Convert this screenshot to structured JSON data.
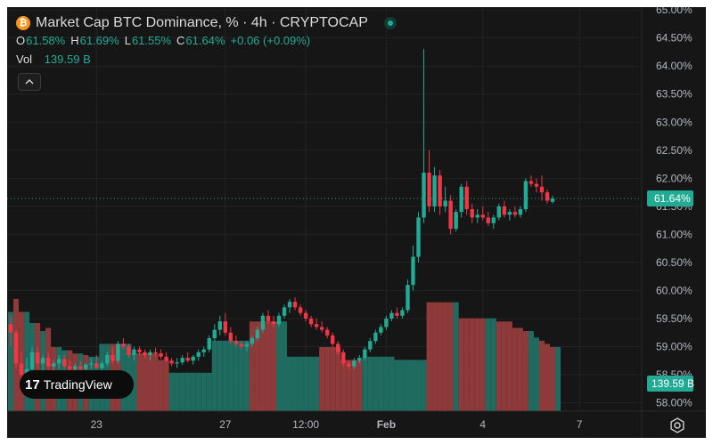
{
  "header": {
    "icon": "bitcoin-icon",
    "title": "Market Cap BTC Dominance, % · 4h · CRYPTOCAP",
    "ohlc": [
      {
        "key": "O",
        "value": "61.58%"
      },
      {
        "key": "H",
        "value": "61.69%"
      },
      {
        "key": "L",
        "value": "61.55%"
      },
      {
        "key": "C",
        "value": "61.64%"
      }
    ],
    "change": "+0.06 (+0.09%)",
    "vol_label": "Vol",
    "vol_value": "139.59 B"
  },
  "branding": {
    "mark": "17",
    "name": "TradingView"
  },
  "colors": {
    "up": "#22ab94",
    "down": "#f23645",
    "vol_up": "#1f6b60",
    "vol_down": "#8e3a3a",
    "bg": "#161616"
  },
  "chart_data": {
    "type": "candlestick",
    "y_axis": {
      "range": [
        57.85,
        65.05
      ],
      "ticks": [
        "65.00%",
        "64.50%",
        "64.00%",
        "63.50%",
        "63.00%",
        "62.50%",
        "62.00%",
        "61.50%",
        "61.00%",
        "60.50%",
        "60.00%",
        "59.50%",
        "59.00%",
        "58.50%",
        "58.00%"
      ],
      "tick_values": [
        65.0,
        64.5,
        64.0,
        63.5,
        63.0,
        62.5,
        62.0,
        61.5,
        61.0,
        60.5,
        60.0,
        59.5,
        59.0,
        58.5,
        58.0
      ]
    },
    "x_axis": {
      "labels": [
        {
          "label": "23",
          "index": 16
        },
        {
          "label": "27",
          "index": 40
        },
        {
          "label": "12:00",
          "index": 55
        },
        {
          "label": "Feb",
          "index": 70
        },
        {
          "label": "4",
          "index": 88
        },
        {
          "label": "7",
          "index": 106
        }
      ]
    },
    "price_label": "61.64%",
    "price_value": 61.64,
    "volume_label": "139.59 B",
    "candles": [
      [
        59.4,
        59.55,
        59.0,
        59.25
      ],
      [
        59.25,
        59.3,
        58.6,
        58.7
      ],
      [
        58.7,
        58.9,
        58.3,
        58.5
      ],
      [
        58.5,
        58.8,
        58.4,
        58.6
      ],
      [
        58.6,
        59.0,
        58.55,
        58.9
      ],
      [
        58.9,
        59.0,
        58.6,
        58.7
      ],
      [
        58.7,
        58.85,
        58.55,
        58.8
      ],
      [
        58.8,
        58.9,
        58.6,
        58.65
      ],
      [
        58.65,
        58.75,
        58.55,
        58.7
      ],
      [
        58.7,
        58.85,
        58.6,
        58.78
      ],
      [
        58.78,
        58.85,
        58.6,
        58.65
      ],
      [
        58.65,
        58.75,
        58.55,
        58.6
      ],
      [
        58.6,
        58.7,
        58.5,
        58.65
      ],
      [
        58.65,
        58.75,
        58.55,
        58.6
      ],
      [
        58.6,
        58.7,
        58.5,
        58.68
      ],
      [
        58.68,
        58.8,
        58.6,
        58.7
      ],
      [
        58.7,
        58.85,
        58.6,
        58.62
      ],
      [
        58.62,
        58.75,
        58.55,
        58.7
      ],
      [
        58.7,
        58.9,
        58.65,
        58.85
      ],
      [
        58.85,
        59.0,
        58.7,
        58.75
      ],
      [
        58.75,
        59.1,
        58.7,
        59.05
      ],
      [
        59.05,
        59.15,
        58.95,
        59.0
      ],
      [
        59.0,
        59.05,
        58.8,
        58.85
      ],
      [
        58.85,
        59.0,
        58.75,
        58.95
      ],
      [
        58.95,
        59.0,
        58.85,
        58.9
      ],
      [
        58.9,
        58.95,
        58.8,
        58.85
      ],
      [
        58.85,
        58.95,
        58.75,
        58.9
      ],
      [
        58.9,
        58.98,
        58.82,
        58.88
      ],
      [
        58.88,
        58.95,
        58.78,
        58.82
      ],
      [
        58.82,
        58.9,
        58.72,
        58.75
      ],
      [
        58.75,
        58.8,
        58.65,
        58.7
      ],
      [
        58.7,
        58.8,
        58.62,
        58.72
      ],
      [
        58.72,
        58.85,
        58.68,
        58.8
      ],
      [
        58.8,
        58.9,
        58.72,
        58.75
      ],
      [
        58.75,
        58.85,
        58.68,
        58.82
      ],
      [
        58.82,
        58.95,
        58.75,
        58.9
      ],
      [
        58.9,
        59.0,
        58.82,
        58.95
      ],
      [
        58.95,
        59.2,
        58.9,
        59.15
      ],
      [
        59.15,
        59.4,
        59.1,
        59.3
      ],
      [
        59.3,
        59.55,
        59.2,
        59.45
      ],
      [
        59.45,
        59.6,
        59.2,
        59.25
      ],
      [
        59.25,
        59.35,
        59.05,
        59.1
      ],
      [
        59.1,
        59.2,
        59.0,
        59.05
      ],
      [
        59.05,
        59.1,
        58.95,
        59.0
      ],
      [
        59.0,
        59.1,
        58.92,
        59.05
      ],
      [
        59.05,
        59.2,
        59.0,
        59.15
      ],
      [
        59.15,
        59.35,
        59.1,
        59.3
      ],
      [
        59.3,
        59.6,
        59.25,
        59.55
      ],
      [
        59.55,
        59.65,
        59.4,
        59.45
      ],
      [
        59.45,
        59.55,
        59.35,
        59.4
      ],
      [
        59.4,
        59.6,
        59.35,
        59.55
      ],
      [
        59.55,
        59.75,
        59.5,
        59.7
      ],
      [
        59.7,
        59.85,
        59.6,
        59.8
      ],
      [
        59.8,
        59.88,
        59.65,
        59.7
      ],
      [
        59.7,
        59.75,
        59.55,
        59.6
      ],
      [
        59.6,
        59.65,
        59.45,
        59.5
      ],
      [
        59.5,
        59.55,
        59.35,
        59.4
      ],
      [
        59.4,
        59.5,
        59.3,
        59.35
      ],
      [
        59.35,
        59.45,
        59.25,
        59.3
      ],
      [
        59.3,
        59.35,
        59.15,
        59.2
      ],
      [
        59.2,
        59.25,
        59.0,
        59.05
      ],
      [
        59.05,
        59.1,
        58.85,
        58.9
      ],
      [
        58.9,
        58.95,
        58.65,
        58.7
      ],
      [
        58.7,
        58.75,
        58.6,
        58.65
      ],
      [
        58.65,
        58.8,
        58.6,
        58.75
      ],
      [
        58.75,
        58.85,
        58.7,
        58.8
      ],
      [
        58.8,
        59.0,
        58.75,
        58.95
      ],
      [
        58.95,
        59.15,
        58.9,
        59.1
      ],
      [
        59.1,
        59.3,
        59.05,
        59.25
      ],
      [
        59.25,
        59.4,
        59.2,
        59.35
      ],
      [
        59.35,
        59.55,
        59.3,
        59.5
      ],
      [
        59.5,
        59.65,
        59.45,
        59.6
      ],
      [
        59.6,
        59.7,
        59.5,
        59.55
      ],
      [
        59.55,
        59.7,
        59.5,
        59.65
      ],
      [
        59.65,
        60.2,
        59.6,
        60.1
      ],
      [
        60.1,
        60.8,
        60.0,
        60.6
      ],
      [
        60.6,
        61.4,
        60.5,
        61.3
      ],
      [
        61.3,
        64.3,
        61.2,
        62.1
      ],
      [
        62.1,
        62.5,
        61.4,
        61.5
      ],
      [
        61.5,
        62.2,
        61.4,
        62.05
      ],
      [
        62.05,
        62.15,
        61.35,
        61.5
      ],
      [
        61.5,
        61.85,
        61.4,
        61.6
      ],
      [
        61.6,
        61.7,
        61.0,
        61.1
      ],
      [
        61.1,
        61.45,
        61.05,
        61.4
      ],
      [
        61.4,
        61.9,
        61.3,
        61.85
      ],
      [
        61.85,
        61.95,
        61.35,
        61.45
      ],
      [
        61.45,
        61.55,
        61.2,
        61.3
      ],
      [
        61.3,
        61.45,
        61.2,
        61.35
      ],
      [
        61.35,
        61.5,
        61.25,
        61.3
      ],
      [
        61.3,
        61.4,
        61.15,
        61.2
      ],
      [
        61.2,
        61.35,
        61.1,
        61.3
      ],
      [
        61.3,
        61.55,
        61.25,
        61.5
      ],
      [
        61.5,
        61.6,
        61.3,
        61.35
      ],
      [
        61.35,
        61.45,
        61.25,
        61.4
      ],
      [
        61.4,
        61.5,
        61.3,
        61.35
      ],
      [
        61.35,
        61.5,
        61.3,
        61.45
      ],
      [
        61.45,
        62.0,
        61.4,
        61.95
      ],
      [
        61.95,
        62.05,
        61.85,
        61.9
      ],
      [
        61.9,
        62.0,
        61.75,
        61.85
      ],
      [
        61.85,
        62.05,
        61.6,
        61.75
      ],
      [
        61.75,
        61.8,
        61.55,
        61.6
      ],
      [
        61.58,
        61.69,
        61.55,
        61.64
      ]
    ],
    "volumes": [
      [
        0.62,
        0
      ],
      [
        0.7,
        1
      ],
      [
        0.62,
        1
      ],
      [
        0.62,
        0
      ],
      [
        0.55,
        0
      ],
      [
        0.55,
        1
      ],
      [
        0.5,
        0
      ],
      [
        0.52,
        1
      ],
      [
        0.4,
        1
      ],
      [
        0.4,
        0
      ],
      [
        0.38,
        0
      ],
      [
        0.38,
        1
      ],
      [
        0.36,
        1
      ],
      [
        0.36,
        0
      ],
      [
        0.35,
        1
      ],
      [
        0.34,
        0
      ],
      [
        0.34,
        0
      ],
      [
        0.42,
        0
      ],
      [
        0.42,
        0
      ],
      [
        0.42,
        1
      ],
      [
        0.42,
        1
      ],
      [
        0.42,
        0
      ],
      [
        0.42,
        0
      ],
      [
        0.36,
        0
      ],
      [
        0.36,
        1
      ],
      [
        0.36,
        1
      ],
      [
        0.36,
        1
      ],
      [
        0.36,
        1
      ],
      [
        0.32,
        1
      ],
      [
        0.32,
        1
      ],
      [
        0.24,
        0
      ],
      [
        0.24,
        0
      ],
      [
        0.24,
        0
      ],
      [
        0.24,
        0
      ],
      [
        0.24,
        0
      ],
      [
        0.24,
        0
      ],
      [
        0.24,
        0
      ],
      [
        0.24,
        0
      ],
      [
        0.44,
        0
      ],
      [
        0.44,
        0
      ],
      [
        0.44,
        0
      ],
      [
        0.44,
        0
      ],
      [
        0.44,
        0
      ],
      [
        0.44,
        0
      ],
      [
        0.44,
        0
      ],
      [
        0.56,
        1
      ],
      [
        0.56,
        1
      ],
      [
        0.56,
        1
      ],
      [
        0.56,
        1
      ],
      [
        0.56,
        1
      ],
      [
        0.56,
        0
      ],
      [
        0.56,
        0
      ],
      [
        0.34,
        0
      ],
      [
        0.34,
        0
      ],
      [
        0.34,
        0
      ],
      [
        0.34,
        0
      ],
      [
        0.34,
        0
      ],
      [
        0.34,
        0
      ],
      [
        0.4,
        1
      ],
      [
        0.4,
        1
      ],
      [
        0.4,
        1
      ],
      [
        0.4,
        1
      ],
      [
        0.32,
        1
      ],
      [
        0.32,
        1
      ],
      [
        0.32,
        1
      ],
      [
        0.32,
        1
      ],
      [
        0.34,
        0
      ],
      [
        0.34,
        0
      ],
      [
        0.34,
        0
      ],
      [
        0.34,
        0
      ],
      [
        0.34,
        0
      ],
      [
        0.34,
        0
      ],
      [
        0.32,
        0
      ],
      [
        0.32,
        0
      ],
      [
        0.32,
        0
      ],
      [
        0.32,
        0
      ],
      [
        0.32,
        0
      ],
      [
        0.32,
        0
      ],
      [
        0.68,
        1
      ],
      [
        0.68,
        1
      ],
      [
        0.68,
        1
      ],
      [
        0.68,
        1
      ],
      [
        0.68,
        1
      ],
      [
        0.68,
        0
      ],
      [
        0.58,
        1
      ],
      [
        0.58,
        1
      ],
      [
        0.58,
        1
      ],
      [
        0.58,
        1
      ],
      [
        0.58,
        1
      ],
      [
        0.58,
        0
      ],
      [
        0.58,
        0
      ],
      [
        0.56,
        1
      ],
      [
        0.56,
        1
      ],
      [
        0.56,
        1
      ],
      [
        0.52,
        1
      ],
      [
        0.52,
        1
      ],
      [
        0.5,
        1
      ],
      [
        0.5,
        0
      ],
      [
        0.46,
        0
      ],
      [
        0.44,
        1
      ],
      [
        0.42,
        1
      ],
      [
        0.4,
        1
      ],
      [
        0.4,
        0
      ]
    ]
  }
}
